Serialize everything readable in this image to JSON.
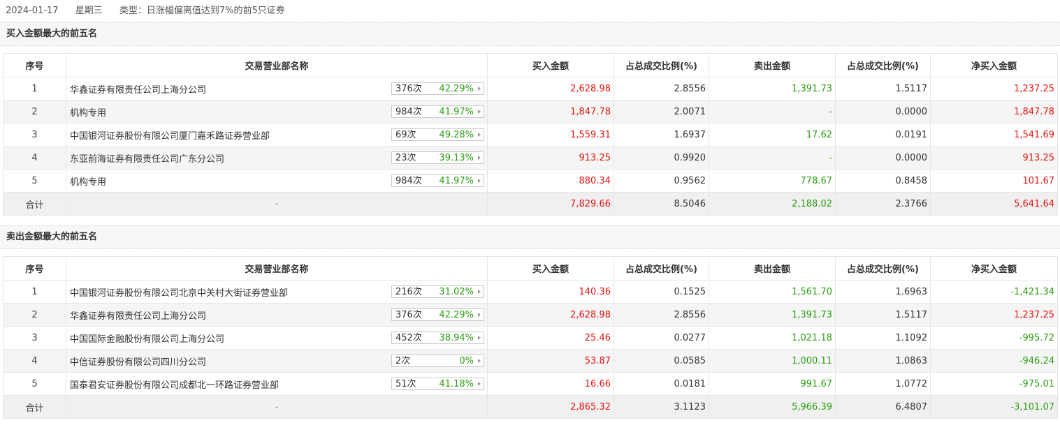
{
  "topbar": {
    "date": "2024-01-17",
    "weekday": "星期三",
    "type": "类型：日涨幅偏离值达到7%的前5只证券"
  },
  "colors": {
    "up": "#e3140f",
    "down": "#2a9d12"
  },
  "headers": {
    "index": "序号",
    "dept": "交易营业部名称",
    "buy": "买入金额",
    "buy_ratio": "占总成交比例(%)",
    "sell": "卖出金额",
    "sell_ratio": "占总成交比例(%)",
    "net": "净买入金额"
  },
  "buy_section": {
    "title": "买入金额最大的前五名",
    "rows": [
      {
        "idx": "1",
        "name": "华鑫证券有限责任公司上海分公司",
        "count": "376次",
        "rate": "42.29%",
        "buy": "2,628.98",
        "buy_ratio": "2.8556",
        "sell": "1,391.73",
        "sell_ratio": "1.5117",
        "net": "1,237.25"
      },
      {
        "idx": "2",
        "name": "机构专用",
        "count": "984次",
        "rate": "41.97%",
        "buy": "1,847.78",
        "buy_ratio": "2.0071",
        "sell": "-",
        "sell_ratio": "0.0000",
        "net": "1,847.78"
      },
      {
        "idx": "3",
        "name": "中国银河证券股份有限公司厦门嘉禾路证券营业部",
        "count": "69次",
        "rate": "49.28%",
        "buy": "1,559.31",
        "buy_ratio": "1.6937",
        "sell": "17.62",
        "sell_ratio": "0.0191",
        "net": "1,541.69"
      },
      {
        "idx": "4",
        "name": "东亚前海证券有限责任公司广东分公司",
        "count": "23次",
        "rate": "39.13%",
        "buy": "913.25",
        "buy_ratio": "0.9920",
        "sell": "-",
        "sell_ratio": "0.0000",
        "net": "913.25"
      },
      {
        "idx": "5",
        "name": "机构专用",
        "count": "984次",
        "rate": "41.97%",
        "buy": "880.34",
        "buy_ratio": "0.9562",
        "sell": "778.67",
        "sell_ratio": "0.8458",
        "net": "101.67"
      }
    ],
    "total": {
      "label": "合计",
      "dept": "-",
      "buy": "7,829.66",
      "buy_ratio": "8.5046",
      "sell": "2,188.02",
      "sell_ratio": "2.3766",
      "net": "5,641.64"
    }
  },
  "sell_section": {
    "title": "卖出金额最大的前五名",
    "rows": [
      {
        "idx": "1",
        "name": "中国银河证券股份有限公司北京中关村大街证券营业部",
        "count": "216次",
        "rate": "31.02%",
        "buy": "140.36",
        "buy_ratio": "0.1525",
        "sell": "1,561.70",
        "sell_ratio": "1.6963",
        "net": "-1,421.34"
      },
      {
        "idx": "2",
        "name": "华鑫证券有限责任公司上海分公司",
        "count": "376次",
        "rate": "42.29%",
        "buy": "2,628.98",
        "buy_ratio": "2.8556",
        "sell": "1,391.73",
        "sell_ratio": "1.5117",
        "net": "1,237.25"
      },
      {
        "idx": "3",
        "name": "中国国际金融股份有限公司上海分公司",
        "count": "452次",
        "rate": "38.94%",
        "buy": "25.46",
        "buy_ratio": "0.0277",
        "sell": "1,021.18",
        "sell_ratio": "1.1092",
        "net": "-995.72"
      },
      {
        "idx": "4",
        "name": "中信证券股份有限公司四川分公司",
        "count": "2次",
        "rate": "0%",
        "buy": "53.87",
        "buy_ratio": "0.0585",
        "sell": "1,000.11",
        "sell_ratio": "1.0863",
        "net": "-946.24"
      },
      {
        "idx": "5",
        "name": "国泰君安证券股份有限公司成都北一环路证券营业部",
        "count": "51次",
        "rate": "41.18%",
        "buy": "16.66",
        "buy_ratio": "0.0181",
        "sell": "991.67",
        "sell_ratio": "1.0772",
        "net": "-975.01"
      }
    ],
    "total": {
      "label": "合计",
      "dept": "-",
      "buy": "2,865.32",
      "buy_ratio": "3.1123",
      "sell": "5,966.39",
      "sell_ratio": "6.4807",
      "net": "-3,101.07"
    }
  }
}
